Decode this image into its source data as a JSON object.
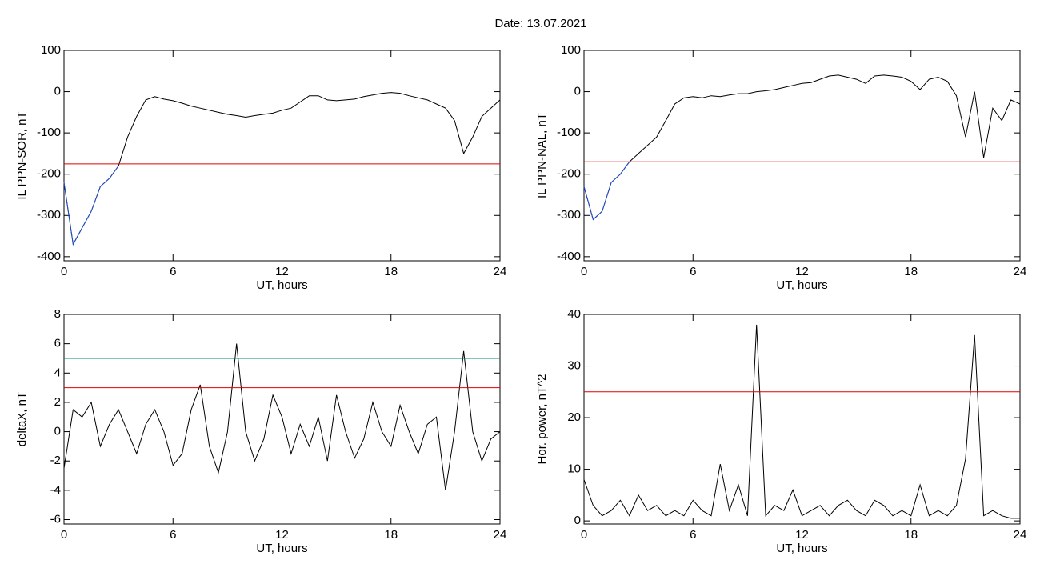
{
  "title": "Date:  13.07.2021",
  "chart_data": [
    {
      "type": "line",
      "ylabel": "IL PPN-SOR, nT",
      "xlabel": "UT, hours",
      "xlim": [
        0,
        24
      ],
      "xticks": [
        0,
        6,
        12,
        18,
        24
      ],
      "ylim": [
        -410,
        100
      ],
      "yticks": [
        -400,
        -300,
        -200,
        -100,
        0,
        100
      ],
      "x": [
        0,
        0.5,
        1,
        1.5,
        2,
        2.5,
        3,
        3.5,
        4,
        4.5,
        5,
        5.5,
        6,
        6.5,
        7,
        7.5,
        8,
        8.5,
        9,
        9.5,
        10,
        10.5,
        11,
        11.5,
        12,
        12.5,
        13,
        13.5,
        14,
        14.5,
        15,
        15.5,
        16,
        16.5,
        17,
        17.5,
        18,
        18.5,
        19,
        19.5,
        20,
        20.5,
        21,
        21.5,
        22,
        22.5,
        23,
        23.5,
        24
      ],
      "series": [
        {
          "color": "#000000",
          "values": [
            -220,
            -370,
            -330,
            -290,
            -230,
            -210,
            -180,
            -110,
            -60,
            -20,
            -12,
            -18,
            -22,
            -28,
            -35,
            -40,
            -45,
            -50,
            -55,
            -58,
            -62,
            -58,
            -55,
            -52,
            -45,
            -40,
            -25,
            -10,
            -10,
            -20,
            -22,
            -20,
            -18,
            -12,
            -8,
            -4,
            -2,
            -4,
            -10,
            -15,
            -20,
            -30,
            -40,
            -70,
            -150,
            -110,
            -60,
            -40,
            -20
          ]
        },
        {
          "color": "#1f4fd0",
          "values": [
            -220,
            -370,
            -330,
            -290,
            -230,
            -210,
            -180,
            null,
            null,
            null,
            null,
            null,
            null,
            null,
            null,
            null,
            null,
            null,
            null,
            null,
            null,
            null,
            null,
            null,
            null,
            null,
            null,
            null,
            null,
            null,
            null,
            null,
            null,
            null,
            null,
            null,
            null,
            null,
            null,
            null,
            null,
            null,
            null,
            null,
            null,
            null,
            null,
            null,
            null
          ]
        }
      ],
      "hlines": [
        {
          "value": -175,
          "color": "#e00000"
        }
      ]
    },
    {
      "type": "line",
      "ylabel": "IL PPN-NAL, nT",
      "xlabel": "UT, hours",
      "xlim": [
        0,
        24
      ],
      "xticks": [
        0,
        6,
        12,
        18,
        24
      ],
      "ylim": [
        -410,
        100
      ],
      "yticks": [
        -400,
        -300,
        -200,
        -100,
        0,
        100
      ],
      "x": [
        0,
        0.5,
        1,
        1.5,
        2,
        2.5,
        3,
        3.5,
        4,
        4.5,
        5,
        5.5,
        6,
        6.5,
        7,
        7.5,
        8,
        8.5,
        9,
        9.5,
        10,
        10.5,
        11,
        11.5,
        12,
        12.5,
        13,
        13.5,
        14,
        14.5,
        15,
        15.5,
        16,
        16.5,
        17,
        17.5,
        18,
        18.5,
        19,
        19.5,
        20,
        20.5,
        21,
        21.5,
        22,
        22.5,
        23,
        23.5,
        24
      ],
      "series": [
        {
          "color": "#000000",
          "values": [
            -230,
            -310,
            -290,
            -220,
            -200,
            -170,
            -150,
            -130,
            -110,
            -70,
            -30,
            -15,
            -12,
            -15,
            -10,
            -12,
            -8,
            -5,
            -5,
            0,
            2,
            5,
            10,
            15,
            20,
            22,
            30,
            38,
            40,
            35,
            30,
            20,
            38,
            40,
            38,
            35,
            25,
            5,
            30,
            35,
            25,
            -10,
            -110,
            0,
            -160,
            -40,
            -70,
            -20,
            -30
          ]
        },
        {
          "color": "#1f4fd0",
          "values": [
            -230,
            -310,
            -290,
            -220,
            -200,
            -170,
            null,
            null,
            null,
            null,
            null,
            null,
            null,
            null,
            null,
            null,
            null,
            null,
            null,
            null,
            null,
            null,
            null,
            null,
            null,
            null,
            null,
            null,
            null,
            null,
            null,
            null,
            null,
            null,
            null,
            null,
            null,
            null,
            null,
            null,
            null,
            null,
            null,
            null,
            null,
            null,
            null,
            null,
            null
          ]
        }
      ],
      "hlines": [
        {
          "value": -170,
          "color": "#e00000"
        }
      ]
    },
    {
      "type": "line",
      "ylabel": "deltaX, nT",
      "xlabel": "UT, hours",
      "xlim": [
        0,
        24
      ],
      "xticks": [
        0,
        6,
        12,
        18,
        24
      ],
      "ylim": [
        -6.3,
        8
      ],
      "yticks": [
        -6,
        -4,
        -2,
        0,
        2,
        4,
        6,
        8
      ],
      "x": [
        0,
        0.5,
        1,
        1.5,
        2,
        2.5,
        3,
        3.5,
        4,
        4.5,
        5,
        5.5,
        6,
        6.5,
        7,
        7.5,
        8,
        8.5,
        9,
        9.5,
        10,
        10.5,
        11,
        11.5,
        12,
        12.5,
        13,
        13.5,
        14,
        14.5,
        15,
        15.5,
        16,
        16.5,
        17,
        17.5,
        18,
        18.5,
        19,
        19.5,
        20,
        20.5,
        21,
        21.5,
        22,
        22.5,
        23,
        23.5,
        24
      ],
      "series": [
        {
          "color": "#000000",
          "values": [
            -2.5,
            1.5,
            1,
            2,
            -1,
            0.5,
            1.5,
            0,
            -1.5,
            0.5,
            1.5,
            0,
            -2.3,
            -1.5,
            1.5,
            3.2,
            -1,
            -2.8,
            0,
            6,
            0,
            -2,
            -0.5,
            2.5,
            1,
            -1.5,
            0.5,
            -1,
            1,
            -2,
            2.5,
            0,
            -1.8,
            -0.5,
            2,
            0,
            -1,
            1.8,
            0,
            -1.5,
            0.5,
            1,
            -4,
            0,
            5.5,
            0,
            -2,
            -0.5,
            0
          ]
        }
      ],
      "hlines": [
        {
          "value": 5,
          "color": "#00888a"
        },
        {
          "value": 3,
          "color": "#e00000"
        }
      ]
    },
    {
      "type": "line",
      "ylabel": "Hor. power, nT^2",
      "xlabel": "UT, hours",
      "xlim": [
        0,
        24
      ],
      "xticks": [
        0,
        6,
        12,
        18,
        24
      ],
      "ylim": [
        -0.6,
        40
      ],
      "yticks": [
        0,
        10,
        20,
        30,
        40
      ],
      "x": [
        0,
        0.5,
        1,
        1.5,
        2,
        2.5,
        3,
        3.5,
        4,
        4.5,
        5,
        5.5,
        6,
        6.5,
        7,
        7.5,
        8,
        8.5,
        9,
        9.5,
        10,
        10.5,
        11,
        11.5,
        12,
        12.5,
        13,
        13.5,
        14,
        14.5,
        15,
        15.5,
        16,
        16.5,
        17,
        17.5,
        18,
        18.5,
        19,
        19.5,
        20,
        20.5,
        21,
        21.5,
        22,
        22.5,
        23,
        23.5,
        24
      ],
      "series": [
        {
          "color": "#000000",
          "values": [
            8,
            3,
            1,
            2,
            4,
            1,
            5,
            2,
            3,
            1,
            2,
            1,
            4,
            2,
            1,
            11,
            2,
            7,
            1,
            38,
            1,
            3,
            2,
            6,
            1,
            2,
            3,
            1,
            3,
            4,
            2,
            1,
            4,
            3,
            1,
            2,
            1,
            7,
            1,
            2,
            1,
            3,
            12,
            36,
            1,
            2,
            1,
            0.5,
            0.5
          ]
        }
      ],
      "hlines": [
        {
          "value": 25,
          "color": "#e00000"
        }
      ]
    }
  ]
}
